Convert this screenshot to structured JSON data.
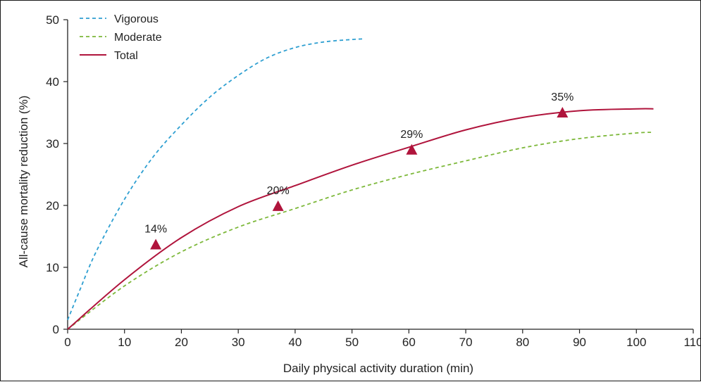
{
  "chart_data": {
    "type": "line",
    "title": "",
    "xlabel": "Daily physical activity duration (min)",
    "ylabel": "All-cause mortality reduction (%)",
    "xlim": [
      0,
      110
    ],
    "ylim": [
      0,
      50
    ],
    "xticks": [
      0,
      10,
      20,
      30,
      40,
      50,
      60,
      70,
      80,
      90,
      100,
      110
    ],
    "yticks": [
      0,
      10,
      20,
      30,
      40,
      50
    ],
    "grid": false,
    "legend_position": "top-left",
    "series": [
      {
        "name": "Vigorous",
        "style": "dashed",
        "color": "#2e9fd1",
        "x": [
          0,
          2,
          5,
          10,
          15,
          20,
          25,
          30,
          35,
          40,
          45,
          50,
          52
        ],
        "y": [
          1.5,
          6,
          12.5,
          21,
          27.8,
          33,
          37.5,
          41,
          43.8,
          45.5,
          46.4,
          46.8,
          46.9
        ]
      },
      {
        "name": "Moderate",
        "style": "dashed",
        "color": "#7db83a",
        "x": [
          0,
          10,
          20,
          30,
          40,
          50,
          60,
          70,
          80,
          90,
          100,
          103
        ],
        "y": [
          0,
          7,
          12.5,
          16.5,
          19.5,
          22.5,
          25,
          27.2,
          29.3,
          30.8,
          31.7,
          31.8
        ]
      },
      {
        "name": "Total",
        "style": "solid",
        "color": "#b0143c",
        "x": [
          0,
          10,
          20,
          30,
          40,
          50,
          60,
          70,
          80,
          90,
          100,
          103
        ],
        "y": [
          0,
          8,
          14.8,
          19.8,
          23.2,
          26.5,
          29.4,
          32.2,
          34.2,
          35.3,
          35.6,
          35.6
        ]
      }
    ],
    "markers": [
      {
        "x": 15.5,
        "y": 13.7,
        "label": "14%"
      },
      {
        "x": 37,
        "y": 19.9,
        "label": "20%"
      },
      {
        "x": 60.5,
        "y": 29,
        "label": "29%"
      },
      {
        "x": 87,
        "y": 35,
        "label": "35%"
      }
    ],
    "marker_color": "#b0143c",
    "axis_color": "#222222"
  }
}
